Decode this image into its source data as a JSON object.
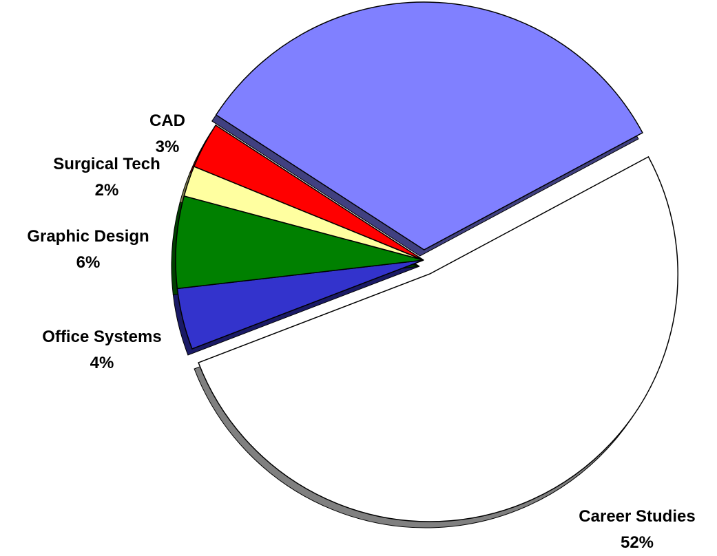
{
  "chart_data": {
    "type": "pie",
    "categories": [
      null,
      "Career Studies",
      "Office Systems",
      "Graphic Design",
      "Surgical Tech",
      "CAD"
    ],
    "values": [
      33,
      52,
      4,
      6,
      2,
      3
    ],
    "value_labels": [
      null,
      "52%",
      "4%",
      "6%",
      "2%",
      "3%"
    ],
    "colors": [
      "#8080ff",
      "#ffffff",
      "#3333cc",
      "#008000",
      "#ffffa0",
      "#ff0000"
    ]
  }
}
